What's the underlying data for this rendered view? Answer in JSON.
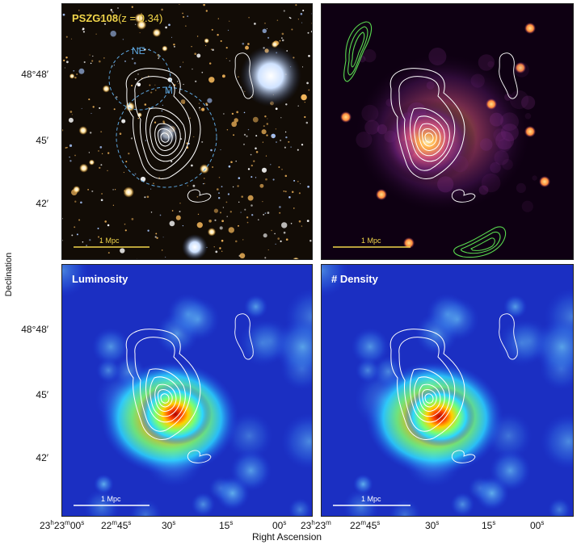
{
  "figure": {
    "ylabel": "Declination",
    "xlabel": "Right Ascension",
    "y_ticks": [
      "48°48′",
      "45′",
      "42′"
    ],
    "x_ticks": [
      "23h23m00s",
      "22m45s",
      "30s",
      "15s",
      "00s",
      "23h"
    ],
    "x_ticks_display": [
      "23",
      "22",
      "30",
      "15",
      "00",
      "23"
    ]
  },
  "panels": {
    "optical": {
      "cluster_name": "PSZG108",
      "redshift": "(z = 0.34)",
      "region_ne": "NE",
      "region_m": "M",
      "scale_bar": "1 Mpc"
    },
    "xray": {
      "scale_bar": "1 Mpc"
    },
    "luminosity": {
      "title": "Luminosity",
      "scale_bar": "1 Mpc"
    },
    "density": {
      "title": "# Density",
      "scale_bar": "1 Mpc"
    }
  },
  "colors": {
    "optical_bg": "#120c06",
    "xray_bg": "#0e0012",
    "density_map_bg": "#1b2fc2",
    "contour": "#ffffff",
    "radio_contour": "#59d94f",
    "scale_bar_optical": "#f1d54a",
    "region_circle": "#5ea7e0"
  }
}
